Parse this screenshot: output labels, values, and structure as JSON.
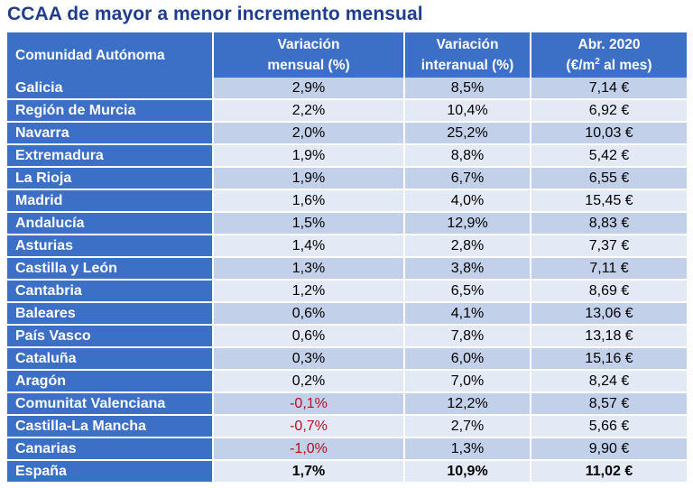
{
  "title": "CCAA de mayor a menor incremento mensual",
  "headers": {
    "region": "Comunidad Autónoma",
    "monthly_line1": "Variación",
    "monthly_line2": "mensual (%)",
    "yearly_line1": "Variación",
    "yearly_line2": "interanual (%)",
    "price_line1": "Abr. 2020",
    "price_line2": "(€/m",
    "price_sup": "2",
    "price_line2_end": " al mes)"
  },
  "rows": [
    {
      "region": "Galicia",
      "monthly": "2,9%",
      "yearly": "8,5%",
      "price": "7,14 €"
    },
    {
      "region": "Región de Murcia",
      "monthly": "2,2%",
      "yearly": "10,4%",
      "price": "6,92 €"
    },
    {
      "region": "Navarra",
      "monthly": "2,0%",
      "yearly": "25,2%",
      "price": "10,03 €"
    },
    {
      "region": "Extremadura",
      "monthly": "1,9%",
      "yearly": "8,8%",
      "price": "5,42 €"
    },
    {
      "region": "La Rioja",
      "monthly": "1,9%",
      "yearly": "6,7%",
      "price": "6,55 €"
    },
    {
      "region": "Madrid",
      "monthly": "1,6%",
      "yearly": "4,0%",
      "price": "15,45 €"
    },
    {
      "region": "Andalucía",
      "monthly": "1,5%",
      "yearly": "12,9%",
      "price": "8,83 €"
    },
    {
      "region": "Asturias",
      "monthly": "1,4%",
      "yearly": "2,8%",
      "price": "7,37 €"
    },
    {
      "region": "Castilla y León",
      "monthly": "1,3%",
      "yearly": "3,8%",
      "price": "7,11 €"
    },
    {
      "region": "Cantabria",
      "monthly": "1,2%",
      "yearly": "6,5%",
      "price": "8,69 €"
    },
    {
      "region": "Baleares",
      "monthly": "0,6%",
      "yearly": "4,1%",
      "price": "13,06 €"
    },
    {
      "region": "País Vasco",
      "monthly": "0,6%",
      "yearly": "7,8%",
      "price": "13,18 €"
    },
    {
      "region": "Cataluña",
      "monthly": "0,3%",
      "yearly": "6,0%",
      "price": "15,16 €"
    },
    {
      "region": "Aragón",
      "monthly": "0,2%",
      "yearly": "7,0%",
      "price": "8,24 €"
    },
    {
      "region": "Comunitat Valenciana",
      "monthly": "-0,1%",
      "yearly": "12,2%",
      "price": "8,57 €"
    },
    {
      "region": "Castilla-La Mancha",
      "monthly": "-0,7%",
      "yearly": "2,7%",
      "price": "5,66 €"
    },
    {
      "region": "Canarias",
      "monthly": "-1,0%",
      "yearly": "1,3%",
      "price": "9,90 €"
    }
  ],
  "total": {
    "region": "España",
    "monthly": "1,7%",
    "yearly": "10,9%",
    "price": "11,02 €"
  },
  "colors": {
    "header_blue": "#3c6fc6",
    "title_blue": "#1f3c8f",
    "row_dark": "#c3d0ea",
    "row_light": "#e3e9f5",
    "negative_red": "#b80d1f"
  }
}
